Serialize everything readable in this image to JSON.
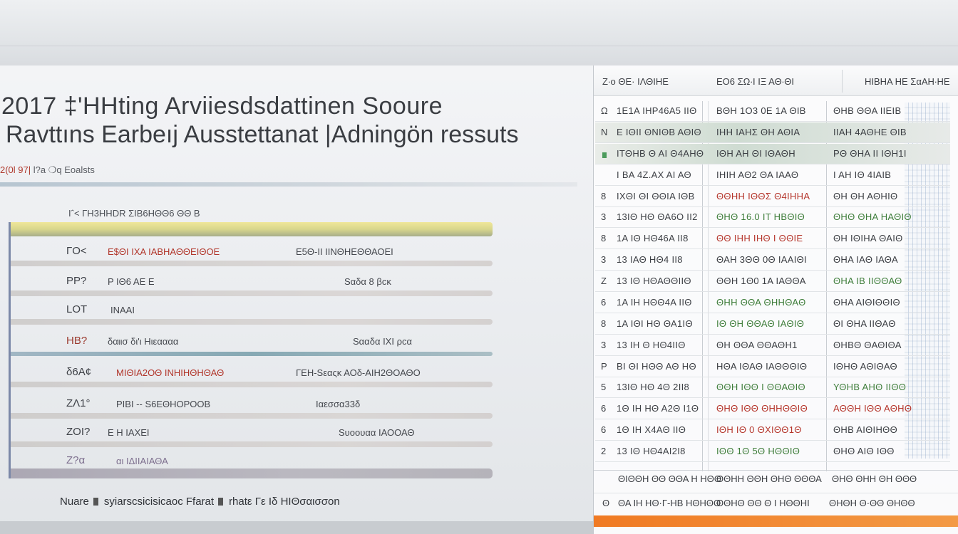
{
  "left": {
    "title_line1": "2017 ‡'HHting  Arviiesdsdattinen Sooure",
    "title_line2": "Ravttıns  Earbeıj  Ausstettanat |Adningön ressuts",
    "subtitle_accent": "2(0l 97|",
    "subtitle_rest": " l?a ❍q Eoalsts",
    "section_label": "Iˆ< ΓΗ3ΗΗDR ΣΙΒ6ΗΘΘ6 ΘΘ Β",
    "rows": [
      {
        "c1": "ΓΟ<",
        "c2": "Ε$ΘΙ ΙΧΑ ΙΑΒΗΑΘΘΕΙΘΟΕ",
        "c3": "Ε5Θ-ΙΙ ΙΙΝΘΗΕΘΘΑΟΕΙ"
      },
      {
        "c1": "ΡΡ?",
        "c2": "Ρ ΙΘ6 ΑΕ Ε",
        "c3": "Sαδα 8 βcκ"
      },
      {
        "c1": "LΟΤ",
        "c2": "ΙΝΑΑΙ",
        "c3": ""
      },
      {
        "c1": "ΗΒ?",
        "c2": "δαιισ δι'ι Ηιεαααα",
        "c3": "Sααδα ΙΧΙ ρcα"
      },
      {
        "c1": "δ6Α¢",
        "c2": "ΜΙΘΙΑ2ΟΘ ΙΝΗΙΗΘΗΘΑΘ",
        "c3": "ΓΕΗ-Sεαςκ  ΑΟδ-ΑΙΗ2ΘΟΑΘΟ"
      },
      {
        "c1": "ΖΛ1°",
        "c2": "ΡΙΒΙ -- S6ΕΘΗΟΡΟΟΒ",
        "c3": "Ιαεσσα33δ"
      },
      {
        "c1": "ΖΟΙ?",
        "c2": "Ε Η ΙΑΧΕΙ",
        "c3": "Sυοουαα ΙΑΟΟΑΘ"
      },
      {
        "c1": "Ζ?α",
        "c2": "αι ΙΔΙΙΑΙΑΘΑ",
        "c3": ""
      }
    ],
    "legend": {
      "item1": "Nuare",
      "item2": "syiarscsicisicaoc  Ffarat",
      "item3": "rhatε Γε Ιδ ΗΙΘσαισσοn"
    }
  },
  "right": {
    "header": {
      "col1": "Ζ∙ο ΘΕ· ΙΛΘΙΗΕ",
      "col2": "ΕΟ6 ΣΩ∙Ι ΙΞ ΑΘ∙ΘΙ",
      "col3": "ΗΙΒΗΑ ΗΕ ΣαΑΗ∙ΗΕ"
    },
    "rows": [
      {
        "n": "Ω",
        "a": "1Ε1Α ΙΗΡ46Α5 ΙΙΘ",
        "b": "ΒΘΗ 1Ο3 0Ε 1Α ΘΙΒ",
        "c": "ΘΗΒ ΘΘΑ ΙΙΕΙΒ",
        "bc": "",
        "cc": "",
        "shade": false
      },
      {
        "n": "Ν",
        "a": "Ε ΙΘΙΙ ΘΝΙΘΒ ΑΘΙΘ",
        "b": "ΙΗΗ ΙΑΗΣ ΘΗ ΑΘΙΑ",
        "c": "ΙΙΑΗ 4ΑΘΗΕ ΘΙΒ",
        "bc": "",
        "cc": "",
        "shade": true
      },
      {
        "n": "",
        "a": "ΙΤΘΗΒ Θ ΑΙ Θ4ΑΗΘ",
        "b": "ΙΘΗ ΑΗ ΘΙ ΙΘΑΘΗ",
        "c": "ΡΘ ΘΗΑ ΙΙ ΙΘΗ1Ι",
        "bc": "",
        "cc": "",
        "shade": true
      },
      {
        "n": "",
        "a": "Ι ΒΑ 4Ζ.ΑΧ ΑΙ ΑΘ",
        "b": "ΙΗΙΗ ΑΘ2 ΘΑ ΙΑΑΘ",
        "c": "Ι ΑΗ ΙΘ 4ΙΑΙΒ",
        "bc": "",
        "cc": "",
        "shade": false
      },
      {
        "n": "8",
        "a": "ΙΧΘΙ ΘΙ ΘΘΙΑ ΙΘΒ",
        "b": "ΘΘΗΗ ΙΘΘΣ Θ4ΙΗΗΑ",
        "c": "ΘΗ ΘΗ ΑΘΗΙΘ",
        "bc": "red",
        "cc": "",
        "shade": false
      },
      {
        "n": "3",
        "a": "13ΙΘ ΗΘ ΘΑ6Ο ΙΙ2",
        "b": "ΘΗΘ 16.0 ΙΤ ΗΒΘΙΘ",
        "c": "ΘΗΘ ΘΗΑ ΗΑΘΙΘ",
        "bc": "green",
        "cc": "green",
        "shade": false
      },
      {
        "n": "8",
        "a": "1Α ΙΘ ΗΘ46Α ΙΙ8",
        "b": "ΘΘ ΙΗΗ ΙΗΘ Ι ΘΘΙΕ",
        "c": "ΘΗ ΙΘΙΗΑ ΘΑΙΘ",
        "bc": "red",
        "cc": "",
        "shade": false
      },
      {
        "n": "3",
        "a": "13 ΙΑΘ ΗΘ4 ΙΙ8",
        "b": "ΘΑΗ 3ΘΘ 0Θ ΙΑΑΙΘΙ",
        "c": "ΘΗΑ ΙΑΘ ΙΑΘΑ",
        "bc": "",
        "cc": "",
        "shade": false
      },
      {
        "n": "Ζ",
        "a": "13 ΙΘ ΗΘΑΘΘΙΙΘ",
        "b": "ΘΘΗ 1Θ0 1Α ΙΑΘΘΑ",
        "c": "ΘΗΑ ΙΒ ΙΙΘΘΑΘ",
        "bc": "",
        "cc": "green",
        "shade": false
      },
      {
        "n": "6",
        "a": "1Α ΙΗ ΗΘΘ4Α ΙΙΘ",
        "b": "ΘΗΗ ΘΘΑ ΘΗΗΘΑΘ",
        "c": "ΘΗΑ ΑΙΘΙΘΘΙΘ",
        "bc": "green",
        "cc": "",
        "shade": false
      },
      {
        "n": "8",
        "a": "1Α ΙΘΙ ΗΘ ΘΑ1ΙΘ",
        "b": "ΙΘ ΘΗ ΘΘΑΘ ΙΑΘΙΘ",
        "c": "ΘΙ ΘΗΑ ΙΙΘΑΘ",
        "bc": "green",
        "cc": "",
        "shade": false
      },
      {
        "n": "3",
        "a": "13 ΙΗ Θ ΗΘ4ΙΙΘ",
        "b": "ΘΗ ΘΘΑ ΘΘΑΘΗ1",
        "c": "ΘΗΒΘ ΘΑΘΙΘΑ",
        "bc": "",
        "cc": "",
        "shade": false
      },
      {
        "n": "Ρ",
        "a": "ΒΙ ΘΙ ΗΘΘ ΑΘ ΗΘ",
        "b": "ΗΘΑ ΙΘΑΘ ΙΑΘΘΘΙΘ",
        "c": "ΙΘΗΘ ΑΘΙΘΑΘ",
        "bc": "",
        "cc": "",
        "shade": false
      },
      {
        "n": "5",
        "a": "13ΙΘ ΗΘ 4Θ 2ΙΙ8",
        "b": "ΘΘΗ ΙΘΘ Ι ΘΘΑΘΙΘ",
        "c": "ΥΘΗΒ ΑΗΘ ΙΙΘΘ",
        "bc": "green",
        "cc": "green",
        "shade": false
      },
      {
        "n": "6",
        "a": "1Θ ΙΗ ΗΘ Α2Θ Ι1Θ",
        "b": "ΘΗΘ ΙΘΘ ΘΗΗΘΘΙΘ",
        "c": "ΑΘΘΗ ΙΘΘ ΑΘΗΘ",
        "bc": "red",
        "cc": "red",
        "shade": false
      },
      {
        "n": "6",
        "a": "1Θ ΙΗ Χ4ΑΘ ΙΙΘ",
        "b": "ΙΘΗ ΙΘ 0 ΘΧΙΘΘ1Θ",
        "c": "ΘΗΒ ΑΙΘΙΗΘΘ",
        "bc": "red",
        "cc": "",
        "shade": false
      },
      {
        "n": "2",
        "a": "13 ΙΘ ΗΘ4ΑΙ2Ι8",
        "b": "ΙΘΘ 1Θ 5Θ ΗΘΘΙΘ",
        "c": "ΘΗΘ ΑΙΘ ΙΘΘ",
        "bc": "green",
        "cc": "",
        "shade": false
      }
    ],
    "footer1": {
      "a": "ΘΙΘΘΗ ΘΘ ΘΘΑ Η ΗΘΘ",
      "b": "ΘΘΗΗ ΘΘΗ ΘΗΘ ΘΘΘΑ",
      "c": "ΘΗΘ ΘΗΗ ΘΗ ΘΘΘ"
    },
    "footer2": {
      "n": "Θ",
      "a": "ΘΑ ΙΗ ΗΘ·Γ-ΗΒ ΗΘΗΘΘ",
      "b": "ΘΘΗΘ ΘΘ Θ Ι ΗΘΘΗΙ",
      "c": "ΘΗΘΗ Θ·ΘΘ ΘΗΘΘ"
    }
  },
  "colors": {
    "accent_orange": "#f07a23",
    "accent_red": "#b5362c",
    "accent_green": "#3e7d3a",
    "header_yellow": "#f0e79a"
  }
}
